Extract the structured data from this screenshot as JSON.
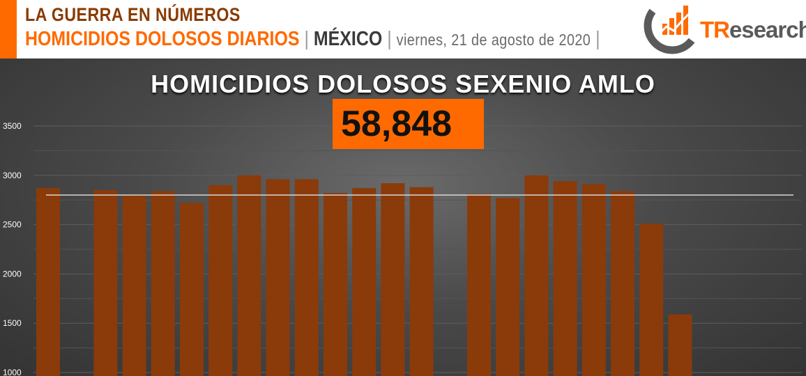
{
  "header": {
    "title": "LA GUERRA EN NÚMEROS",
    "subtitle": "HOMICIDIOS DOLOSOS DIARIOS",
    "separator": "|",
    "country": "MÉXICO",
    "date": "viernes, 21 de agosto de 2020",
    "logo_text_t": "TR",
    "logo_text_rest": "esearch",
    "colors": {
      "accent": "#ff6a00",
      "title": "#8a3a00",
      "subtitle": "#ff6a00",
      "logo_gray": "#5a5a5a"
    }
  },
  "chart_data": {
    "type": "bar",
    "title": "HOMICIDIOS DOLOSOS SEXENIO AMLO",
    "total": "58,848",
    "ylim": [
      1000,
      3500
    ],
    "yticks": [
      1000,
      1500,
      2000,
      2500,
      3000,
      3500
    ],
    "reference_line": 2800,
    "values": [
      2870,
      null,
      2850,
      2800,
      2840,
      2720,
      2900,
      3000,
      2960,
      2960,
      2820,
      2870,
      2920,
      2880,
      null,
      2810,
      2770,
      3000,
      2940,
      2910,
      2840,
      2510,
      1590,
      null,
      null,
      null
    ],
    "grid": true,
    "colors": {
      "bar": "#8b3a0a",
      "total_box": "#ff6a00",
      "reference_line": "#d8d8d8"
    }
  }
}
